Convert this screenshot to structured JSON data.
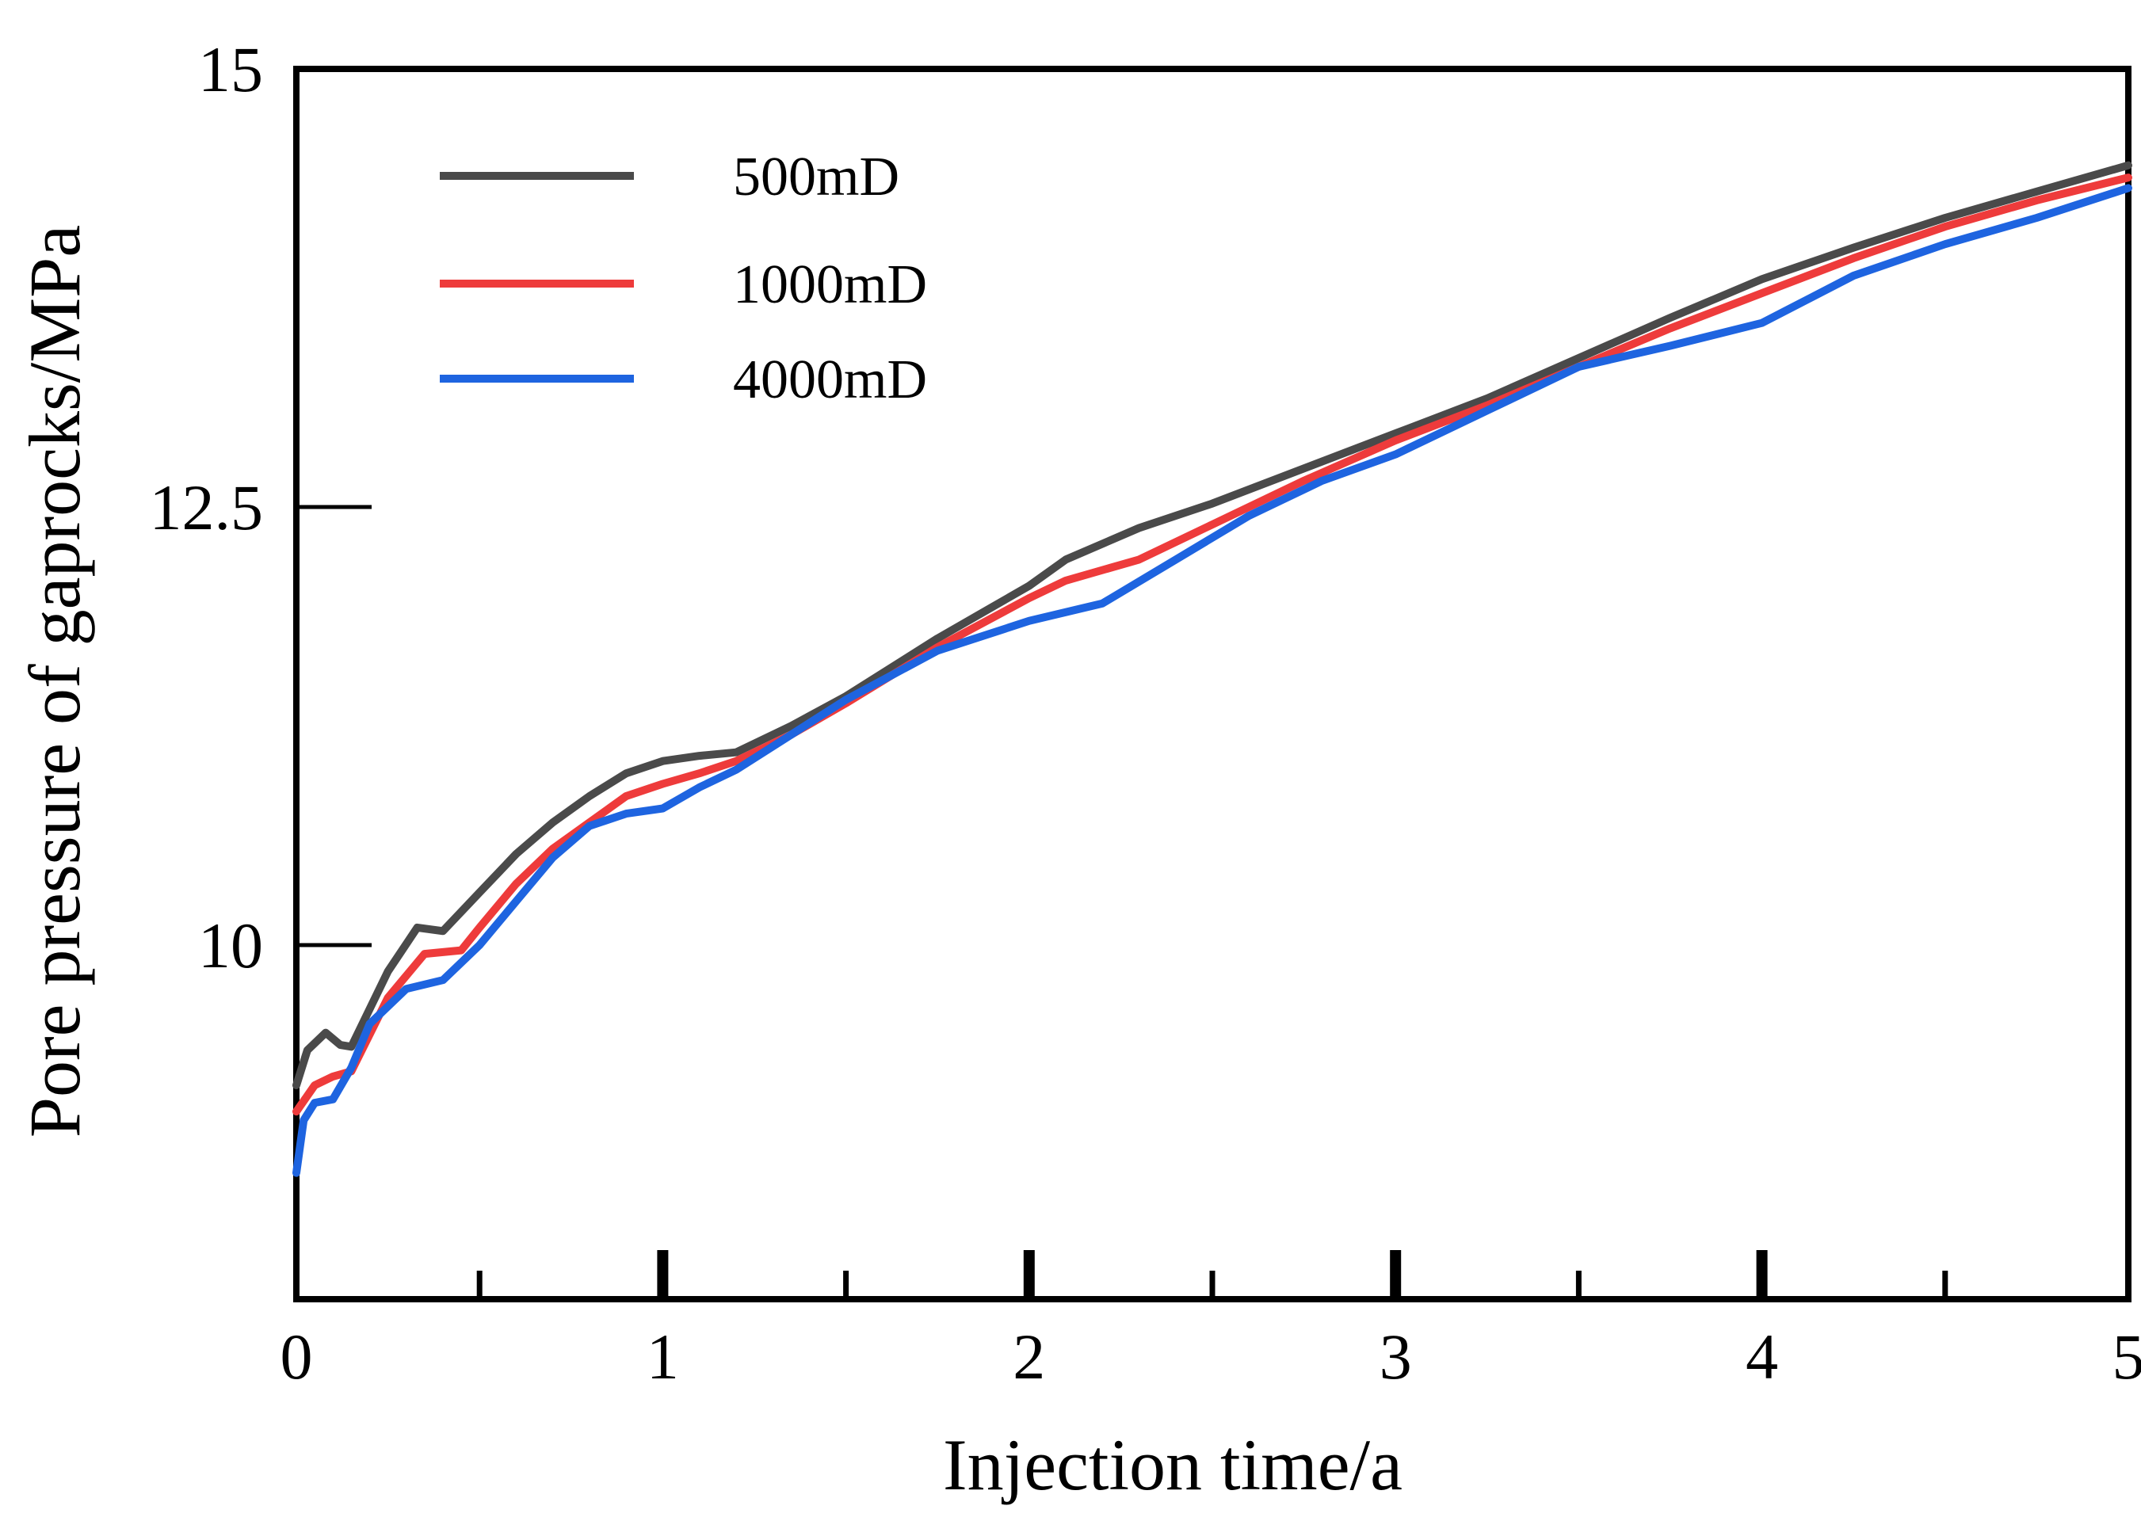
{
  "chart_data": {
    "type": "line",
    "title": "",
    "xlabel": "Injection time/a",
    "ylabel": "Pore pressure of gaprocks/MPa",
    "xlim": [
      0,
      5
    ],
    "ylim": [
      8,
      15
    ],
    "x_ticks": [
      "0",
      "1",
      "2",
      "3",
      "4",
      "5"
    ],
    "y_ticks": [
      "10",
      "12.5",
      "15"
    ],
    "grid": false,
    "legend_position": "top-left",
    "series": [
      {
        "name": "500mD",
        "color": "#4a4a4a",
        "x": [
          0.0,
          0.03,
          0.08,
          0.12,
          0.15,
          0.25,
          0.33,
          0.4,
          0.5,
          0.6,
          0.7,
          0.8,
          0.9,
          1.0,
          1.1,
          1.2,
          1.35,
          1.5,
          1.75,
          2.0,
          2.1,
          2.3,
          2.5,
          2.75,
          3.0,
          3.25,
          3.5,
          3.75,
          4.0,
          4.25,
          4.5,
          4.75,
          5.0
        ],
        "y": [
          9.2,
          9.4,
          9.5,
          9.43,
          9.42,
          9.85,
          10.1,
          10.08,
          10.3,
          10.52,
          10.7,
          10.85,
          10.98,
          11.05,
          11.08,
          11.1,
          11.25,
          11.42,
          11.75,
          12.05,
          12.2,
          12.38,
          12.52,
          12.72,
          12.92,
          13.12,
          13.35,
          13.58,
          13.8,
          13.98,
          14.15,
          14.3,
          14.45
        ]
      },
      {
        "name": "1000mD",
        "color": "#ee3b3b",
        "x": [
          0.0,
          0.05,
          0.1,
          0.15,
          0.25,
          0.35,
          0.45,
          0.5,
          0.6,
          0.7,
          0.8,
          0.9,
          1.0,
          1.1,
          1.2,
          1.35,
          1.5,
          1.75,
          2.0,
          2.1,
          2.3,
          2.5,
          2.75,
          3.0,
          3.25,
          3.5,
          3.75,
          4.0,
          4.25,
          4.5,
          4.75,
          5.0
        ],
        "y": [
          9.05,
          9.2,
          9.25,
          9.28,
          9.7,
          9.95,
          9.97,
          10.1,
          10.35,
          10.55,
          10.7,
          10.85,
          10.92,
          10.98,
          11.05,
          11.2,
          11.38,
          11.7,
          11.98,
          12.08,
          12.2,
          12.4,
          12.65,
          12.88,
          13.08,
          13.3,
          13.52,
          13.72,
          13.92,
          14.1,
          14.25,
          14.38
        ]
      },
      {
        "name": "4000mD",
        "color": "#1e64e0",
        "x": [
          0.0,
          0.02,
          0.05,
          0.1,
          0.15,
          0.2,
          0.3,
          0.4,
          0.5,
          0.6,
          0.7,
          0.8,
          0.9,
          1.0,
          1.1,
          1.2,
          1.35,
          1.5,
          1.75,
          2.0,
          2.2,
          2.4,
          2.6,
          2.8,
          3.0,
          3.25,
          3.5,
          3.75,
          4.0,
          4.25,
          4.5,
          4.75,
          5.0
        ],
        "y": [
          8.7,
          9.0,
          9.1,
          9.12,
          9.3,
          9.55,
          9.75,
          9.8,
          10.0,
          10.25,
          10.5,
          10.68,
          10.75,
          10.78,
          10.9,
          11.0,
          11.2,
          11.4,
          11.68,
          11.85,
          11.95,
          12.2,
          12.45,
          12.65,
          12.8,
          13.05,
          13.3,
          13.42,
          13.55,
          13.82,
          14.0,
          14.15,
          14.32
        ]
      }
    ]
  }
}
